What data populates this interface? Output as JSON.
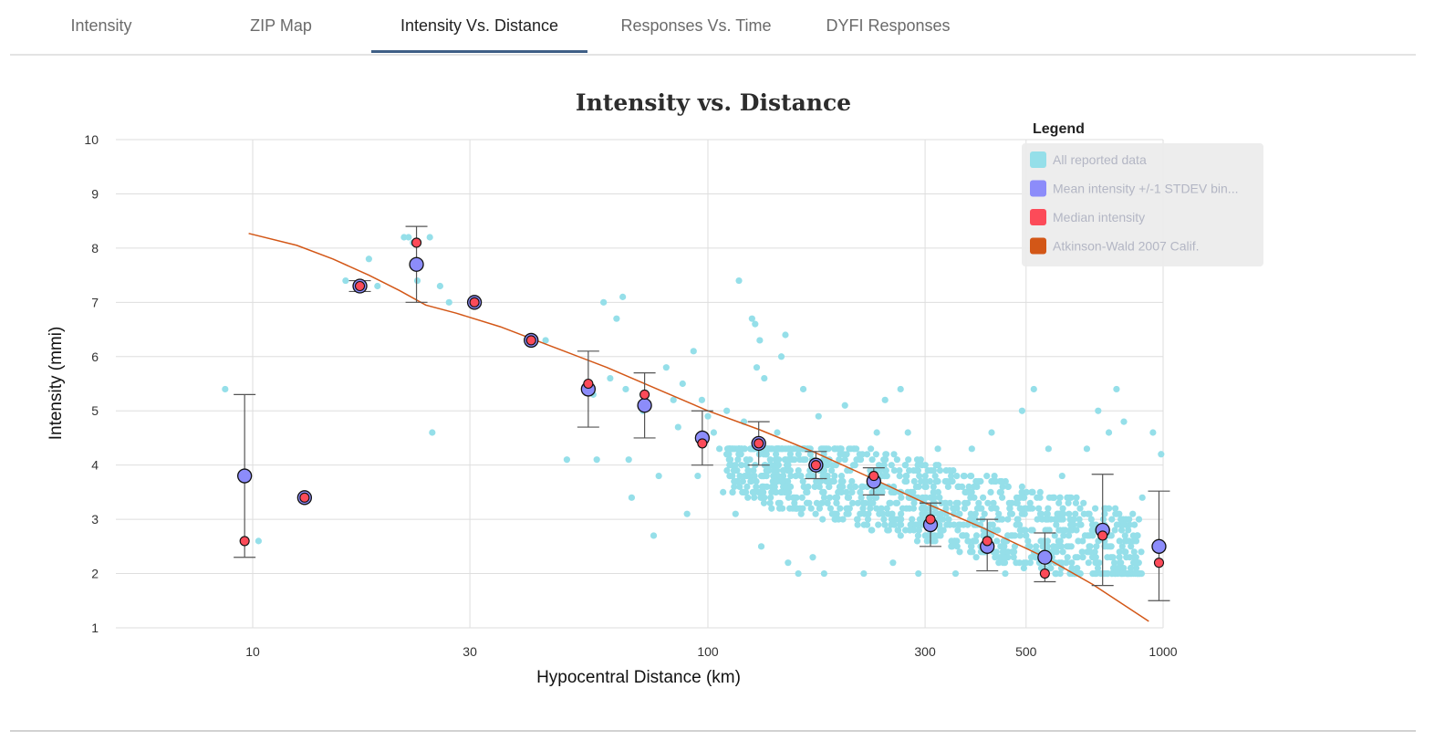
{
  "tabs": [
    {
      "label": "Intensity",
      "active": false
    },
    {
      "label": "ZIP Map",
      "active": false
    },
    {
      "label": "Intensity Vs. Distance",
      "active": true
    },
    {
      "label": "Responses Vs. Time",
      "active": false
    },
    {
      "label": "DYFI Responses",
      "active": false
    }
  ],
  "chart_data": {
    "type": "scatter",
    "title": "Intensity vs. Distance",
    "xlabel": "Hypocentral Distance (km)",
    "ylabel": "Intensity (mmi)",
    "xscale": "log",
    "xlim": [
      5,
      1000
    ],
    "ylim": [
      1,
      10
    ],
    "x_ticks": [
      10,
      30,
      100,
      300,
      500,
      1000
    ],
    "y_ticks": [
      1,
      2,
      3,
      4,
      5,
      6,
      7,
      8,
      9,
      10
    ],
    "grid": true,
    "legend": {
      "title": "Legend",
      "placement": "top-right",
      "entries": [
        {
          "label": "All reported data",
          "color": "#95dfe9"
        },
        {
          "label": "Mean intensity +/-1 STDEV bin...",
          "color": "#8c8cfa"
        },
        {
          "label": "Median intensity",
          "color": "#fc4b59"
        },
        {
          "label": "Atkinson-Wald 2007 Calif.",
          "color": "#d35717"
        }
      ]
    },
    "series": [
      {
        "name": "Mean intensity +/-1 STDEV binned",
        "color": "#8c8cfa",
        "points": [
          {
            "x": 9.6,
            "y": 3.8,
            "lo": 2.3,
            "hi": 5.3
          },
          {
            "x": 13.0,
            "y": 3.4,
            "lo": 3.4,
            "hi": 3.4
          },
          {
            "x": 17.2,
            "y": 7.3,
            "lo": 7.2,
            "hi": 7.4
          },
          {
            "x": 22.9,
            "y": 7.7,
            "lo": 7.0,
            "hi": 8.4
          },
          {
            "x": 30.7,
            "y": 7.0,
            "lo": 7.0,
            "hi": 7.0
          },
          {
            "x": 40.9,
            "y": 6.3,
            "lo": 6.3,
            "hi": 6.3
          },
          {
            "x": 54.6,
            "y": 5.4,
            "lo": 4.7,
            "hi": 6.1
          },
          {
            "x": 72.6,
            "y": 5.1,
            "lo": 4.5,
            "hi": 5.7
          },
          {
            "x": 97.2,
            "y": 4.5,
            "lo": 4.0,
            "hi": 5.0
          },
          {
            "x": 129.3,
            "y": 4.4,
            "lo": 4.0,
            "hi": 4.8
          },
          {
            "x": 172.7,
            "y": 4.0,
            "lo": 3.75,
            "hi": 4.25
          },
          {
            "x": 231.4,
            "y": 3.7,
            "lo": 3.45,
            "hi": 3.95
          },
          {
            "x": 308.3,
            "y": 2.9,
            "lo": 2.5,
            "hi": 3.3
          },
          {
            "x": 410.8,
            "y": 2.5,
            "lo": 2.05,
            "hi": 3.0
          },
          {
            "x": 549.8,
            "y": 2.3,
            "lo": 1.85,
            "hi": 2.75
          },
          {
            "x": 736.4,
            "y": 2.8,
            "lo": 1.78,
            "hi": 3.83
          },
          {
            "x": 979.3,
            "y": 2.5,
            "lo": 1.5,
            "hi": 3.52
          }
        ]
      },
      {
        "name": "Median intensity",
        "color": "#fc4b59",
        "points": [
          {
            "x": 9.6,
            "y": 2.6
          },
          {
            "x": 13.0,
            "y": 3.4
          },
          {
            "x": 17.2,
            "y": 7.3
          },
          {
            "x": 22.9,
            "y": 8.1
          },
          {
            "x": 30.7,
            "y": 7.0
          },
          {
            "x": 40.9,
            "y": 6.3
          },
          {
            "x": 54.6,
            "y": 5.5
          },
          {
            "x": 72.6,
            "y": 5.3
          },
          {
            "x": 97.2,
            "y": 4.4
          },
          {
            "x": 129.3,
            "y": 4.4
          },
          {
            "x": 172.7,
            "y": 4.0
          },
          {
            "x": 231.4,
            "y": 3.8
          },
          {
            "x": 308.3,
            "y": 3.0
          },
          {
            "x": 410.8,
            "y": 2.6
          },
          {
            "x": 549.8,
            "y": 2.0
          },
          {
            "x": 736.4,
            "y": 2.7
          },
          {
            "x": 979.3,
            "y": 2.2
          }
        ]
      },
      {
        "name": "Atkinson-Wald 2007 Calif.",
        "type": "line",
        "color": "#d35717",
        "points": [
          {
            "x": 9.8,
            "y": 8.27
          },
          {
            "x": 12.5,
            "y": 8.05
          },
          {
            "x": 15.0,
            "y": 7.8
          },
          {
            "x": 18.0,
            "y": 7.5
          },
          {
            "x": 21.0,
            "y": 7.22
          },
          {
            "x": 24.0,
            "y": 6.95
          },
          {
            "x": 28.0,
            "y": 6.8
          },
          {
            "x": 35.0,
            "y": 6.55
          },
          {
            "x": 45.0,
            "y": 6.2
          },
          {
            "x": 60.0,
            "y": 5.8
          },
          {
            "x": 80.0,
            "y": 5.35
          },
          {
            "x": 100.0,
            "y": 5.0
          },
          {
            "x": 130.0,
            "y": 4.65
          },
          {
            "x": 170.0,
            "y": 4.25
          },
          {
            "x": 230.0,
            "y": 3.75
          },
          {
            "x": 300.0,
            "y": 3.3
          },
          {
            "x": 400.0,
            "y": 2.85
          },
          {
            "x": 550.0,
            "y": 2.3
          },
          {
            "x": 700.0,
            "y": 1.8
          },
          {
            "x": 930.0,
            "y": 1.12
          }
        ]
      },
      {
        "name": "All reported data",
        "color": "#95dfe9",
        "points": [
          {
            "x": 8.7,
            "y": 5.4
          },
          {
            "x": 10.3,
            "y": 2.6
          },
          {
            "x": 16.0,
            "y": 7.4
          },
          {
            "x": 18.0,
            "y": 7.8
          },
          {
            "x": 18.8,
            "y": 7.3
          },
          {
            "x": 21.5,
            "y": 8.2
          },
          {
            "x": 22.0,
            "y": 8.2
          },
          {
            "x": 22.5,
            "y": 8.1
          },
          {
            "x": 23.0,
            "y": 7.4
          },
          {
            "x": 24.5,
            "y": 8.2
          },
          {
            "x": 25.8,
            "y": 7.3
          },
          {
            "x": 27.0,
            "y": 7.0
          },
          {
            "x": 24.8,
            "y": 4.6
          },
          {
            "x": 44.0,
            "y": 6.3
          },
          {
            "x": 49.0,
            "y": 4.1
          },
          {
            "x": 56.0,
            "y": 5.3
          },
          {
            "x": 57.0,
            "y": 4.1
          },
          {
            "x": 59.0,
            "y": 7.0
          },
          {
            "x": 61.0,
            "y": 5.6
          },
          {
            "x": 63.0,
            "y": 6.7
          },
          {
            "x": 65.0,
            "y": 7.1
          },
          {
            "x": 66.0,
            "y": 5.4
          },
          {
            "x": 67.0,
            "y": 4.1
          },
          {
            "x": 68.0,
            "y": 3.4
          },
          {
            "x": 72.0,
            "y": 5.0
          },
          {
            "x": 76.0,
            "y": 2.7
          },
          {
            "x": 78.0,
            "y": 3.8
          },
          {
            "x": 81.0,
            "y": 5.8
          },
          {
            "x": 84.0,
            "y": 5.2
          },
          {
            "x": 86.0,
            "y": 4.7
          },
          {
            "x": 88.0,
            "y": 5.5
          },
          {
            "x": 90.0,
            "y": 3.1
          },
          {
            "x": 93.0,
            "y": 6.1
          },
          {
            "x": 95.0,
            "y": 3.8
          },
          {
            "x": 97.0,
            "y": 5.2
          },
          {
            "x": 100.0,
            "y": 4.9
          },
          {
            "x": 103.0,
            "y": 4.6
          },
          {
            "x": 106.0,
            "y": 4.3
          },
          {
            "x": 108.0,
            "y": 3.5
          },
          {
            "x": 110.0,
            "y": 5.0
          },
          {
            "x": 112.0,
            "y": 4.1
          },
          {
            "x": 115.0,
            "y": 3.1
          },
          {
            "x": 117.0,
            "y": 7.4
          },
          {
            "x": 120.0,
            "y": 4.8
          },
          {
            "x": 122.0,
            "y": 3.8
          },
          {
            "x": 125.0,
            "y": 6.7
          },
          {
            "x": 127.0,
            "y": 6.6
          },
          {
            "x": 128.0,
            "y": 5.8
          },
          {
            "x": 130.0,
            "y": 6.3
          },
          {
            "x": 131.0,
            "y": 2.5
          },
          {
            "x": 133.0,
            "y": 5.6
          },
          {
            "x": 135.0,
            "y": 4.3
          },
          {
            "x": 138.0,
            "y": 3.2
          },
          {
            "x": 142.0,
            "y": 4.6
          },
          {
            "x": 145.0,
            "y": 6.0
          },
          {
            "x": 148.0,
            "y": 6.4
          },
          {
            "x": 150.0,
            "y": 2.2
          },
          {
            "x": 152.0,
            "y": 3.8
          },
          {
            "x": 155.0,
            "y": 4.1
          },
          {
            "x": 158.0,
            "y": 2.0
          },
          {
            "x": 162.0,
            "y": 5.4
          },
          {
            "x": 165.0,
            "y": 3.3
          },
          {
            "x": 170.0,
            "y": 2.3
          },
          {
            "x": 175.0,
            "y": 4.9
          },
          {
            "x": 180.0,
            "y": 2.0
          },
          {
            "x": 190.0,
            "y": 3.0
          },
          {
            "x": 200.0,
            "y": 5.1
          },
          {
            "x": 210.0,
            "y": 4.3
          },
          {
            "x": 220.0,
            "y": 2.0
          },
          {
            "x": 235.0,
            "y": 4.6
          },
          {
            "x": 245.0,
            "y": 5.2
          },
          {
            "x": 255.0,
            "y": 2.2
          },
          {
            "x": 265.0,
            "y": 5.4
          },
          {
            "x": 275.0,
            "y": 4.6
          },
          {
            "x": 290.0,
            "y": 2.0
          },
          {
            "x": 320.0,
            "y": 4.3
          },
          {
            "x": 350.0,
            "y": 2.0
          },
          {
            "x": 380.0,
            "y": 4.3
          },
          {
            "x": 420.0,
            "y": 4.6
          },
          {
            "x": 450.0,
            "y": 2.0
          },
          {
            "x": 490.0,
            "y": 5.0
          },
          {
            "x": 520.0,
            "y": 5.4
          },
          {
            "x": 560.0,
            "y": 4.3
          },
          {
            "x": 600.0,
            "y": 3.8
          },
          {
            "x": 640.0,
            "y": 2.0
          },
          {
            "x": 680.0,
            "y": 4.3
          },
          {
            "x": 720.0,
            "y": 5.0
          },
          {
            "x": 760.0,
            "y": 4.6
          },
          {
            "x": 790.0,
            "y": 5.4
          },
          {
            "x": 820.0,
            "y": 4.8
          },
          {
            "x": 860.0,
            "y": 2.7
          },
          {
            "x": 900.0,
            "y": 3.4
          },
          {
            "x": 950.0,
            "y": 4.6
          },
          {
            "x": 990.0,
            "y": 4.2
          }
        ],
        "dense_cluster": {
          "x_range": [
            110,
            900
          ],
          "y_range": [
            2.0,
            4.3
          ],
          "note": "hundreds of overlapping responses"
        }
      }
    ]
  }
}
